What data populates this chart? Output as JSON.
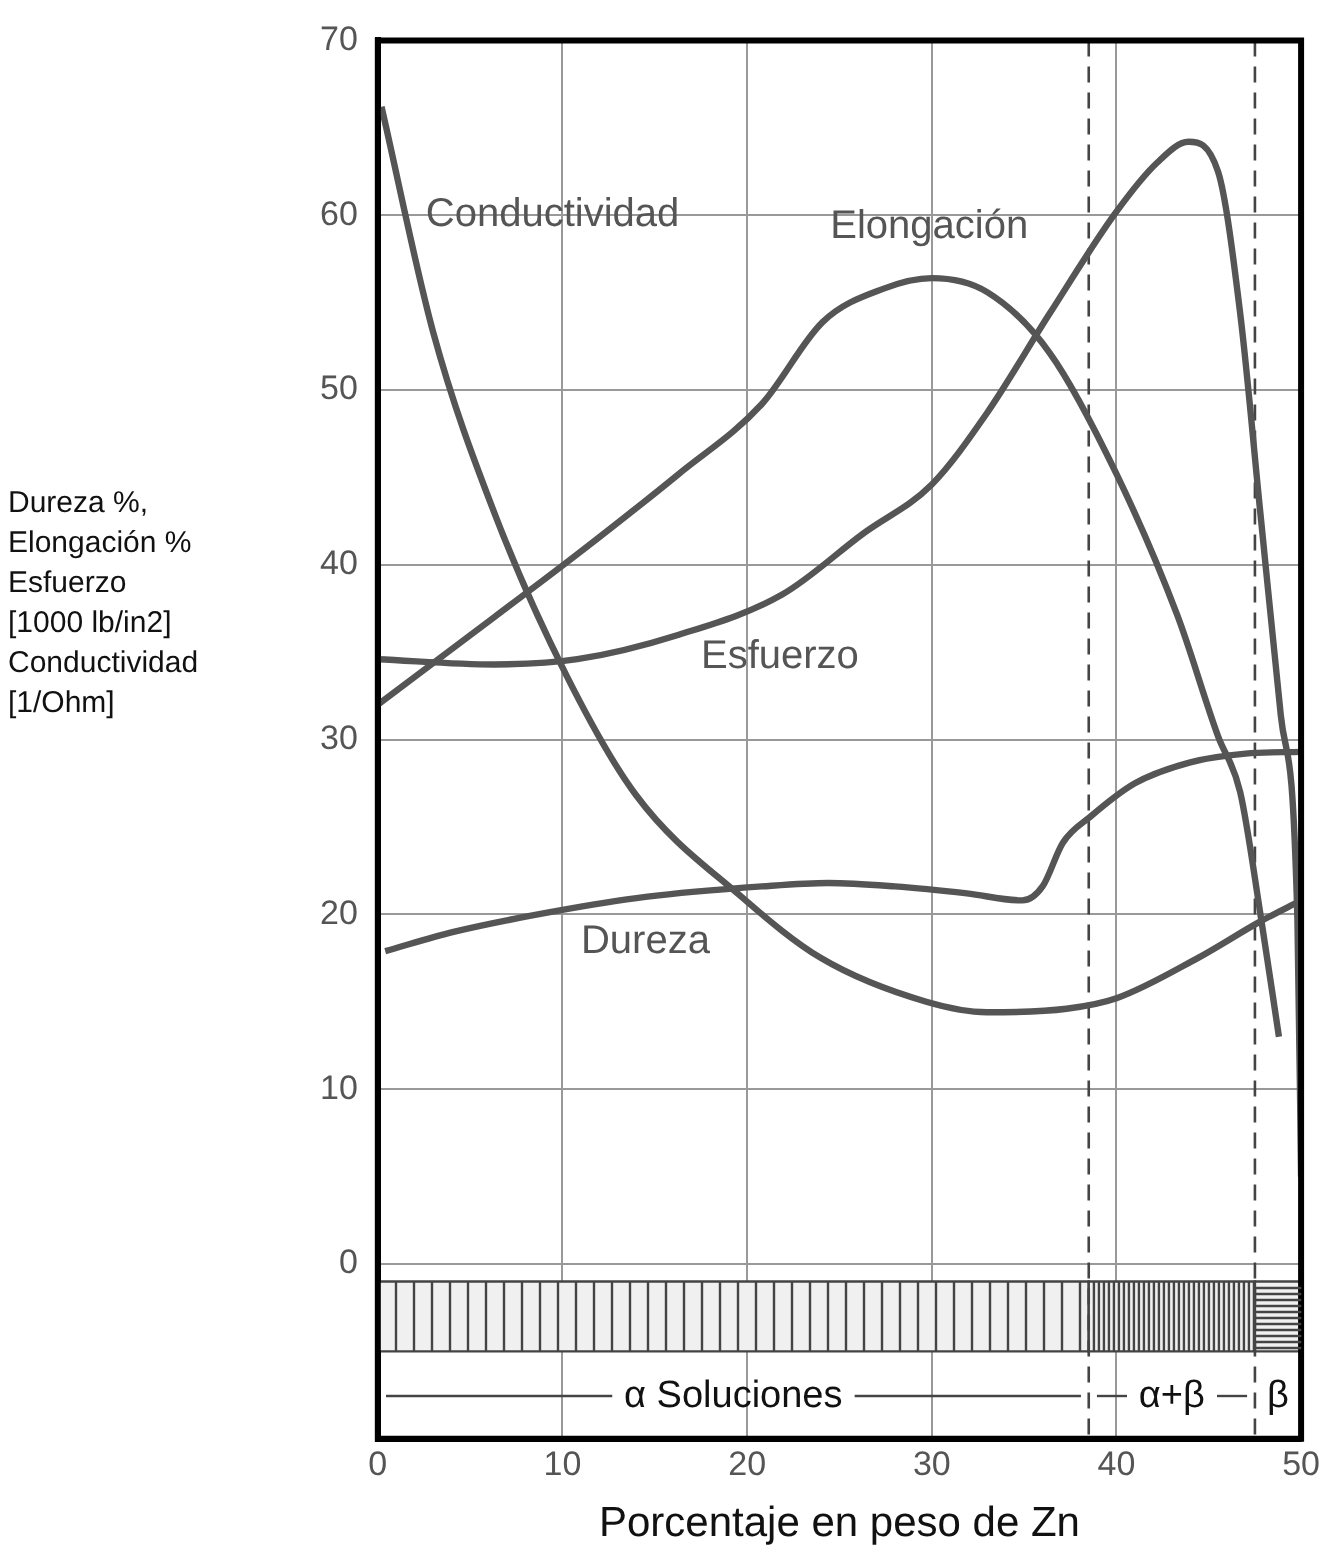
{
  "chart_data": {
    "type": "line",
    "xlabel": "Porcentaje en peso de Zn",
    "ylabel": "Dureza %,\nElongación %\nEsfuerzo\n[1000 lb/in2]\nConductividad\n[1/Ohm]",
    "xlim": [
      0,
      50
    ],
    "xticks": [
      0,
      10,
      20,
      30,
      40,
      50
    ],
    "ylim": [
      -10,
      70
    ],
    "yticks": [
      0,
      10,
      20,
      30,
      40,
      50,
      60,
      70
    ],
    "grid": true,
    "legend": false,
    "marker": "none",
    "line_style": "solid",
    "series": [
      {
        "name": "Conductividad",
        "color": "#555555",
        "x": [
          0.2,
          3,
          6.3,
          10.2,
          14,
          19.7,
          24,
          29.7,
          33,
          37.3,
          40,
          44.4,
          47.8,
          50
        ],
        "values": [
          66.2,
          53.3,
          43,
          33.7,
          26.8,
          21,
          17.5,
          15,
          14.4,
          14.6,
          15.2,
          17.5,
          19.6,
          20.8
        ]
      },
      {
        "name": "Elongación",
        "color": "#555555",
        "x": [
          0,
          6.3,
          10.8,
          16.3,
          20.8,
          24.1,
          27.4,
          30,
          33,
          36.4,
          40,
          43.3,
          45.5,
          46.7,
          47.8,
          48.8
        ],
        "values": [
          32,
          37,
          40.6,
          45.2,
          49.2,
          53.9,
          55.8,
          56.4,
          55.6,
          52.1,
          45.2,
          37.1,
          30.2,
          27,
          20,
          13
        ]
      },
      {
        "name": "Esfuerzo",
        "color": "#555555",
        "x": [
          0,
          6.3,
          10.8,
          16.3,
          21.9,
          26.3,
          30,
          33,
          36.4,
          40,
          42.2,
          43.9,
          45.5,
          46.7,
          47.8,
          48.9,
          49.8,
          50
        ],
        "values": [
          34.6,
          34.3,
          34.6,
          36,
          38.3,
          41.8,
          44.6,
          48.7,
          54.4,
          60.2,
          63,
          64.2,
          62.5,
          54.4,
          42.9,
          31.4,
          19.8,
          5
        ]
      },
      {
        "name": "Dureza",
        "color": "#555555",
        "x": [
          0.4,
          4.1,
          9.7,
          14.5,
          20.8,
          24.4,
          28,
          31.9,
          34.9,
          36,
          37.1,
          38.6,
          41,
          44,
          47,
          50
        ],
        "values": [
          17.9,
          19,
          20.2,
          21,
          21.6,
          21.8,
          21.6,
          21.2,
          20.8,
          21.6,
          24.1,
          25.6,
          27.5,
          28.7,
          29.2,
          29.3
        ]
      }
    ],
    "ref_lines": [
      {
        "axis": "x",
        "value": 38.5,
        "line_style": "dashed"
      },
      {
        "axis": "x",
        "value": 47.5,
        "line_style": "dashed"
      }
    ],
    "bands": [
      {
        "axis": "x",
        "from": 0,
        "to": 38.5,
        "label": "α Soluciones"
      },
      {
        "axis": "x",
        "from": 38.5,
        "to": 47.5,
        "label": "α+β"
      },
      {
        "axis": "x",
        "from": 47.5,
        "to": 50,
        "label": "β"
      }
    ]
  }
}
